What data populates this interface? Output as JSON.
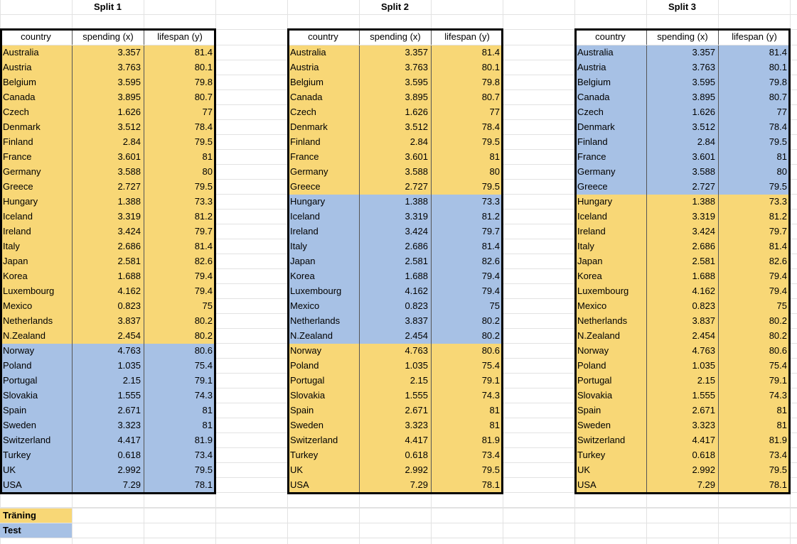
{
  "splits": [
    {
      "title": "Split 1",
      "train_from": 0,
      "train_to": 19
    },
    {
      "title": "Split 2",
      "train_from": 0,
      "train_to": 9,
      "train_from2": 20,
      "train_to2": 29
    },
    {
      "title": "Split 3",
      "train_from": 10,
      "train_to": 29
    }
  ],
  "headers": {
    "country": "country",
    "spending": "spending (x)",
    "lifespan": "lifespan (y)"
  },
  "rows": [
    {
      "country": "Australia",
      "spending": "3.357",
      "lifespan": "81.4"
    },
    {
      "country": "Austria",
      "spending": "3.763",
      "lifespan": "80.1"
    },
    {
      "country": "Belgium",
      "spending": "3.595",
      "lifespan": "79.8"
    },
    {
      "country": "Canada",
      "spending": "3.895",
      "lifespan": "80.7"
    },
    {
      "country": "Czech",
      "spending": "1.626",
      "lifespan": "77"
    },
    {
      "country": "Denmark",
      "spending": "3.512",
      "lifespan": "78.4"
    },
    {
      "country": "Finland",
      "spending": "2.84",
      "lifespan": "79.5"
    },
    {
      "country": "France",
      "spending": "3.601",
      "lifespan": "81"
    },
    {
      "country": "Germany",
      "spending": "3.588",
      "lifespan": "80"
    },
    {
      "country": "Greece",
      "spending": "2.727",
      "lifespan": "79.5"
    },
    {
      "country": "Hungary",
      "spending": "1.388",
      "lifespan": "73.3"
    },
    {
      "country": "Iceland",
      "spending": "3.319",
      "lifespan": "81.2"
    },
    {
      "country": "Ireland",
      "spending": "3.424",
      "lifespan": "79.7"
    },
    {
      "country": "Italy",
      "spending": "2.686",
      "lifespan": "81.4"
    },
    {
      "country": "Japan",
      "spending": "2.581",
      "lifespan": "82.6"
    },
    {
      "country": "Korea",
      "spending": "1.688",
      "lifespan": "79.4"
    },
    {
      "country": "Luxembourg",
      "spending": "4.162",
      "lifespan": "79.4"
    },
    {
      "country": "Mexico",
      "spending": "0.823",
      "lifespan": "75"
    },
    {
      "country": "Netherlands",
      "spending": "3.837",
      "lifespan": "80.2"
    },
    {
      "country": "N.Zealand",
      "spending": "2.454",
      "lifespan": "80.2"
    },
    {
      "country": "Norway",
      "spending": "4.763",
      "lifespan": "80.6"
    },
    {
      "country": "Poland",
      "spending": "1.035",
      "lifespan": "75.4"
    },
    {
      "country": "Portugal",
      "spending": "2.15",
      "lifespan": "79.1"
    },
    {
      "country": "Slovakia",
      "spending": "1.555",
      "lifespan": "74.3"
    },
    {
      "country": "Spain",
      "spending": "2.671",
      "lifespan": "81"
    },
    {
      "country": "Sweden",
      "spending": "3.323",
      "lifespan": "81"
    },
    {
      "country": "Switzerland",
      "spending": "4.417",
      "lifespan": "81.9"
    },
    {
      "country": "Turkey",
      "spending": "0.618",
      "lifespan": "73.4"
    },
    {
      "country": "UK",
      "spending": "2.992",
      "lifespan": "79.5"
    },
    {
      "country": "USA",
      "spending": "7.29",
      "lifespan": "78.1"
    }
  ],
  "legend": {
    "train_label": "Träning",
    "test_label": "Test"
  },
  "colors": {
    "train": "#f8d776",
    "test": "#a7c1e5",
    "grid": "#e2e2e2"
  }
}
